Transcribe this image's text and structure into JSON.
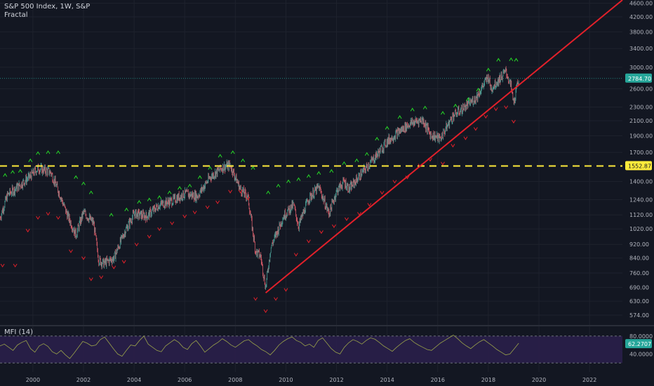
{
  "header": {
    "title": "S&P 500 Index, 1W, S&P",
    "indicator": "Fractal"
  },
  "colors": {
    "background": "#131722",
    "grid": "#1e222d",
    "candle_up": "#4a9c94",
    "candle_down": "#d65a67",
    "fractal_up": "#26d926",
    "fractal_down": "#e2202a",
    "trendline": "#e2202a",
    "level_line": "#ffeb3b",
    "price_badge": "#26a69a",
    "mfi_line": "#9aa34a",
    "mfi_band": "#2a1f4a"
  },
  "chart_data": [
    {
      "type": "candlestick",
      "title": "S&P 500 Index, 1W, S&P",
      "price_axis": {
        "scale": "log",
        "range": [
          540,
          4700
        ],
        "ticks": [
          "4600.00",
          "4200.00",
          "3800.00",
          "3400.00",
          "3000.00",
          "2600.00",
          "2300.00",
          "2100.00",
          "1900.00",
          "1700.00",
          "1400.00",
          "1240.00",
          "1120.00",
          "1020.00",
          "920.00",
          "840.00",
          "760.00",
          "690.00",
          "630.00",
          "574.00"
        ]
      },
      "time_axis": {
        "range": [
          1998.7,
          2023.3
        ],
        "ticks": [
          "2000",
          "2002",
          "2004",
          "2006",
          "2008",
          "2010",
          "2012",
          "2014",
          "2016",
          "2018",
          "2020",
          "2022"
        ]
      },
      "last_price": "2784.70",
      "horizontal_level": {
        "value": 1552.87,
        "label": "1552.87",
        "style": "dashed"
      },
      "trendline": {
        "from": [
          2009.2,
          666
        ],
        "to": [
          2023.3,
          4700
        ]
      },
      "price_path": [
        [
          1998.7,
          1100
        ],
        [
          1999.0,
          1280
        ],
        [
          1999.5,
          1370
        ],
        [
          1999.9,
          1450
        ],
        [
          2000.2,
          1530
        ],
        [
          2000.7,
          1490
        ],
        [
          2001.0,
          1320
        ],
        [
          2001.3,
          1150
        ],
        [
          2001.7,
          980
        ],
        [
          2002.0,
          1140
        ],
        [
          2002.4,
          1060
        ],
        [
          2002.6,
          830
        ],
        [
          2002.8,
          810
        ],
        [
          2003.2,
          840
        ],
        [
          2003.6,
          990
        ],
        [
          2004.0,
          1130
        ],
        [
          2004.5,
          1110
        ],
        [
          2005.0,
          1200
        ],
        [
          2005.5,
          1230
        ],
        [
          2006.0,
          1290
        ],
        [
          2006.5,
          1270
        ],
        [
          2007.0,
          1440
        ],
        [
          2007.5,
          1540
        ],
        [
          2007.8,
          1560
        ],
        [
          2008.2,
          1330
        ],
        [
          2008.5,
          1260
        ],
        [
          2008.8,
          880
        ],
        [
          2009.0,
          850
        ],
        [
          2009.2,
          690
        ],
        [
          2009.4,
          900
        ],
        [
          2009.9,
          1110
        ],
        [
          2010.3,
          1200
        ],
        [
          2010.5,
          1040
        ],
        [
          2010.9,
          1250
        ],
        [
          2011.3,
          1350
        ],
        [
          2011.7,
          1130
        ],
        [
          2012.0,
          1310
        ],
        [
          2012.3,
          1400
        ],
        [
          2012.5,
          1330
        ],
        [
          2013.0,
          1480
        ],
        [
          2013.5,
          1640
        ],
        [
          2014.0,
          1830
        ],
        [
          2014.5,
          1960
        ],
        [
          2014.9,
          2060
        ],
        [
          2015.4,
          2120
        ],
        [
          2015.7,
          1920
        ],
        [
          2016.1,
          1860
        ],
        [
          2016.6,
          2170
        ],
        [
          2017.0,
          2280
        ],
        [
          2017.5,
          2440
        ],
        [
          2018.0,
          2820
        ],
        [
          2018.1,
          2600
        ],
        [
          2018.7,
          2920
        ],
        [
          2018.9,
          2630
        ],
        [
          2019.0,
          2350
        ],
        [
          2019.2,
          2784
        ]
      ],
      "fractals_up": [
        [
          1998.9,
          1460
        ],
        [
          1999.2,
          1490
        ],
        [
          1999.5,
          1500
        ],
        [
          1999.9,
          1610
        ],
        [
          2000.2,
          1690
        ],
        [
          2000.6,
          1700
        ],
        [
          2001.0,
          1700
        ],
        [
          2001.7,
          1440
        ],
        [
          2002.0,
          1380
        ],
        [
          2002.3,
          1300
        ],
        [
          2003.1,
          1120
        ],
        [
          2003.7,
          1160
        ],
        [
          2004.2,
          1220
        ],
        [
          2004.6,
          1240
        ],
        [
          2005.0,
          1260
        ],
        [
          2005.4,
          1300
        ],
        [
          2005.8,
          1340
        ],
        [
          2006.2,
          1360
        ],
        [
          2006.6,
          1440
        ],
        [
          2007.0,
          1530
        ],
        [
          2007.4,
          1660
        ],
        [
          2007.9,
          1700
        ],
        [
          2008.3,
          1610
        ],
        [
          2008.7,
          1530
        ],
        [
          2009.3,
          1300
        ],
        [
          2009.7,
          1360
        ],
        [
          2010.1,
          1400
        ],
        [
          2010.5,
          1420
        ],
        [
          2010.9,
          1450
        ],
        [
          2011.3,
          1480
        ],
        [
          2011.8,
          1500
        ],
        [
          2012.3,
          1580
        ],
        [
          2012.8,
          1610
        ],
        [
          2013.2,
          1680
        ],
        [
          2013.6,
          1860
        ],
        [
          2014.0,
          2000
        ],
        [
          2014.5,
          2150
        ],
        [
          2015.0,
          2260
        ],
        [
          2015.5,
          2290
        ],
        [
          2016.2,
          2210
        ],
        [
          2016.7,
          2320
        ],
        [
          2017.2,
          2420
        ],
        [
          2017.6,
          2580
        ],
        [
          2018.0,
          2950
        ],
        [
          2018.4,
          3150
        ],
        [
          2018.9,
          3160
        ],
        [
          2019.1,
          3150
        ]
      ],
      "fractals_down": [
        [
          1998.8,
          800
        ],
        [
          1999.3,
          800
        ],
        [
          1999.8,
          1010
        ],
        [
          2000.2,
          1100
        ],
        [
          2000.6,
          1130
        ],
        [
          2001.0,
          1100
        ],
        [
          2001.5,
          880
        ],
        [
          2002.0,
          840
        ],
        [
          2002.3,
          730
        ],
        [
          2002.7,
          740
        ],
        [
          2003.2,
          790
        ],
        [
          2003.6,
          820
        ],
        [
          2004.1,
          920
        ],
        [
          2004.6,
          970
        ],
        [
          2005.0,
          1020
        ],
        [
          2005.5,
          1060
        ],
        [
          2006.0,
          1110
        ],
        [
          2006.4,
          1140
        ],
        [
          2006.9,
          1180
        ],
        [
          2007.3,
          1220
        ],
        [
          2007.8,
          1310
        ],
        [
          2008.2,
          1310
        ],
        [
          2008.5,
          1250
        ],
        [
          2008.8,
          640
        ],
        [
          2009.2,
          590
        ],
        [
          2009.6,
          640
        ],
        [
          2010.0,
          680
        ],
        [
          2010.4,
          860
        ],
        [
          2010.9,
          940
        ],
        [
          2011.4,
          1000
        ],
        [
          2011.9,
          1040
        ],
        [
          2012.4,
          1090
        ],
        [
          2012.9,
          1130
        ],
        [
          2013.3,
          1200
        ],
        [
          2013.8,
          1300
        ],
        [
          2014.3,
          1400
        ],
        [
          2014.8,
          1440
        ],
        [
          2015.3,
          1560
        ],
        [
          2015.7,
          1620
        ],
        [
          2016.2,
          1580
        ],
        [
          2016.6,
          1780
        ],
        [
          2017.1,
          1870
        ],
        [
          2017.5,
          1990
        ],
        [
          2017.9,
          2160
        ],
        [
          2018.3,
          2270
        ],
        [
          2018.7,
          2300
        ],
        [
          2019.0,
          2090
        ]
      ]
    },
    {
      "type": "line",
      "title": "MFI (14)",
      "value_label": "62.2707",
      "y_ticks": [
        "80.0000",
        "40.0000"
      ],
      "range": [
        0,
        100
      ],
      "bands": [
        80,
        20
      ],
      "series": [
        {
          "values": [
            58,
            62,
            55,
            48,
            60,
            66,
            70,
            52,
            44,
            58,
            63,
            57,
            45,
            40,
            48,
            38,
            30,
            42,
            55,
            68,
            64,
            58,
            60,
            72,
            78,
            65,
            52,
            40,
            35,
            48,
            60,
            58,
            70,
            80,
            62,
            55,
            48,
            45,
            58,
            65,
            72,
            66,
            55,
            50,
            63,
            70,
            58,
            44,
            52,
            60,
            66,
            74,
            68,
            60,
            55,
            62,
            69,
            72,
            64,
            58,
            50,
            45,
            38,
            48,
            60,
            68,
            74,
            78,
            70,
            66,
            58,
            62,
            55,
            70,
            76,
            64,
            52,
            44,
            40,
            55,
            65,
            72,
            68,
            62,
            70,
            76,
            73,
            66,
            58,
            52,
            46,
            55,
            63,
            70,
            74,
            66,
            60,
            55,
            50,
            48,
            56,
            64,
            70,
            76,
            82,
            74,
            65,
            58,
            52,
            60,
            67,
            72,
            65,
            58,
            50,
            44,
            38,
            40,
            52,
            64
          ]
        }
      ]
    }
  ]
}
